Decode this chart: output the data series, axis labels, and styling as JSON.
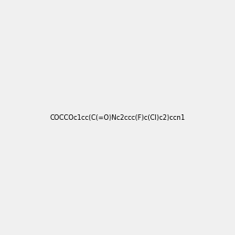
{
  "smiles": "COCCOc1cc(C(=O)Nc2ccc(F)c(Cl)c2)ccn1",
  "background_color": "#f0f0f0",
  "fig_width": 3.0,
  "fig_height": 3.0,
  "dpi": 100,
  "bond_color": "#2d6b2d",
  "atom_colors": {
    "N": "#2222cc",
    "O": "#cc0000",
    "Cl": "#44aa44",
    "F": "#cc44aa",
    "H": "#888888",
    "C": "#2d6b2d"
  },
  "line_width": 1.5
}
